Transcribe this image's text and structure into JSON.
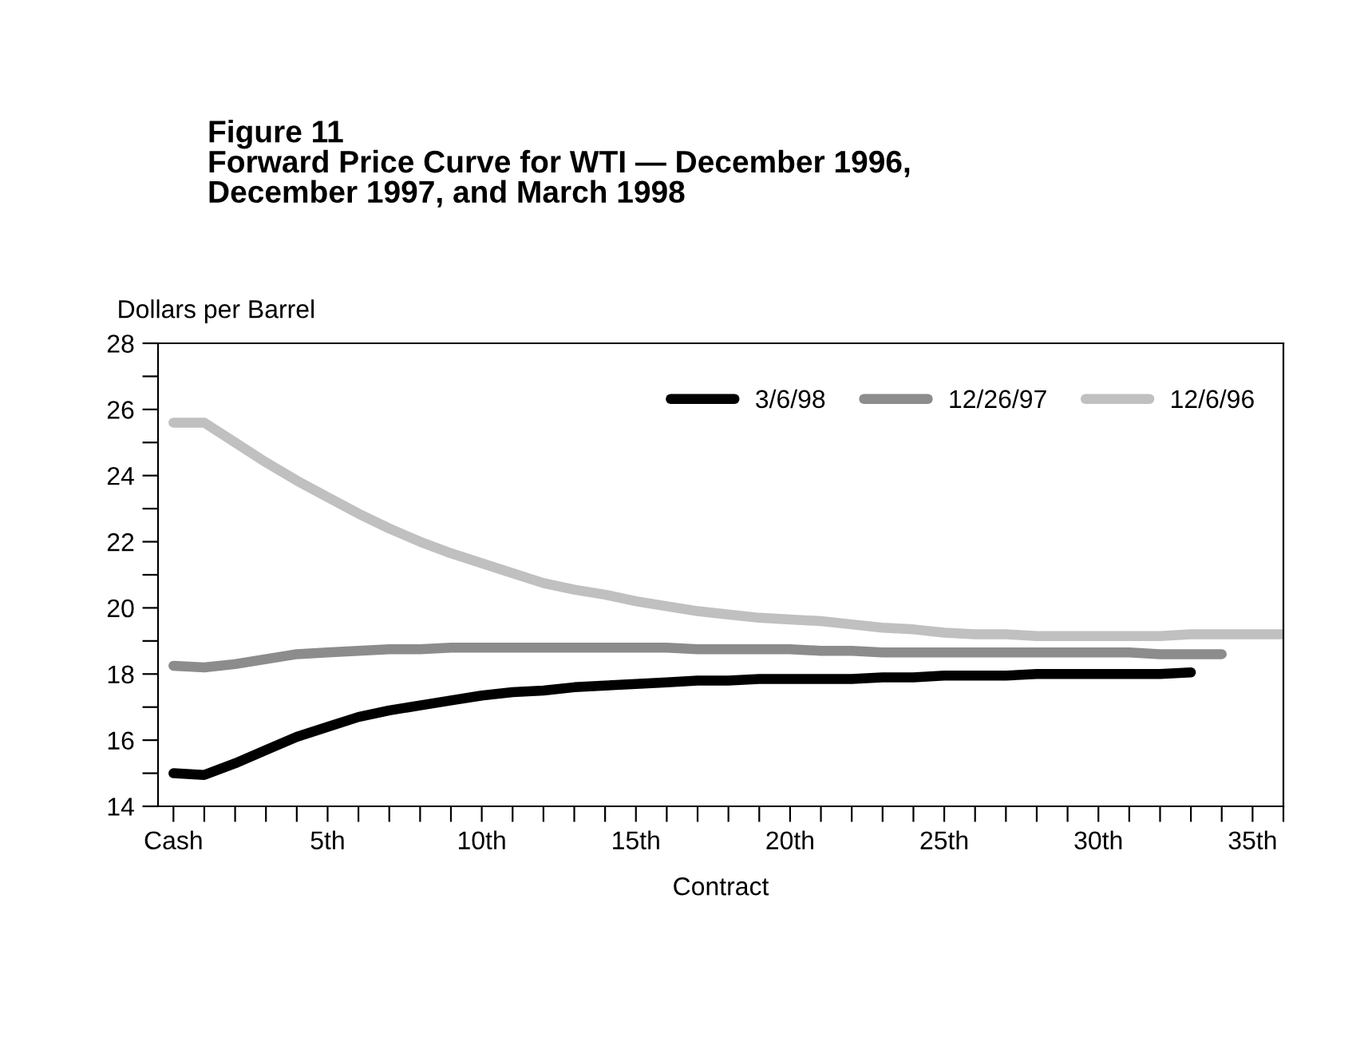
{
  "chart_data": {
    "type": "line",
    "title": "Figure 11\nForward Price Curve for WTI — December 1996,\nDecember 1997, and March 1998",
    "xlabel": "Contract",
    "ylabel": "Dollars per Barrel",
    "xlim": [
      -0.5,
      36
    ],
    "xticks": [
      {
        "value": 0,
        "label": "Cash"
      },
      {
        "value": 1,
        "label": null
      },
      {
        "value": 2,
        "label": null
      },
      {
        "value": 3,
        "label": null
      },
      {
        "value": 4,
        "label": null
      },
      {
        "value": 5,
        "label": "5th"
      },
      {
        "value": 6,
        "label": null
      },
      {
        "value": 7,
        "label": null
      },
      {
        "value": 8,
        "label": null
      },
      {
        "value": 9,
        "label": null
      },
      {
        "value": 10,
        "label": "10th"
      },
      {
        "value": 11,
        "label": null
      },
      {
        "value": 12,
        "label": null
      },
      {
        "value": 13,
        "label": null
      },
      {
        "value": 14,
        "label": null
      },
      {
        "value": 15,
        "label": "15th"
      },
      {
        "value": 16,
        "label": null
      },
      {
        "value": 17,
        "label": null
      },
      {
        "value": 18,
        "label": null
      },
      {
        "value": 19,
        "label": null
      },
      {
        "value": 20,
        "label": "20th"
      },
      {
        "value": 21,
        "label": null
      },
      {
        "value": 22,
        "label": null
      },
      {
        "value": 23,
        "label": null
      },
      {
        "value": 24,
        "label": null
      },
      {
        "value": 25,
        "label": "25th"
      },
      {
        "value": 26,
        "label": null
      },
      {
        "value": 27,
        "label": null
      },
      {
        "value": 28,
        "label": null
      },
      {
        "value": 29,
        "label": null
      },
      {
        "value": 30,
        "label": "30th"
      },
      {
        "value": 31,
        "label": null
      },
      {
        "value": 32,
        "label": null
      },
      {
        "value": 33,
        "label": null
      },
      {
        "value": 34,
        "label": null
      },
      {
        "value": 35,
        "label": "35th"
      },
      {
        "value": 36,
        "label": null
      }
    ],
    "ylim": [
      14,
      28
    ],
    "yticks": [
      14,
      {
        "value": 15,
        "label": null
      },
      16,
      {
        "value": 17,
        "label": null
      },
      18,
      {
        "value": 19,
        "label": null
      },
      20,
      {
        "value": 21,
        "label": null
      },
      22,
      {
        "value": 23,
        "label": null
      },
      24,
      {
        "value": 25,
        "label": null
      },
      26,
      {
        "value": 27,
        "label": null
      },
      28
    ],
    "grid": false,
    "legend": "top right",
    "marker": "none",
    "line_style": "solid",
    "series": [
      {
        "name": "3/6/98",
        "color": "#000000",
        "x": [
          0,
          1,
          2,
          3,
          4,
          5,
          6,
          7,
          8,
          9,
          10,
          11,
          12,
          13,
          14,
          15,
          16,
          17,
          18,
          19,
          20,
          21,
          22,
          23,
          24,
          25,
          26,
          27,
          28,
          29,
          30,
          31,
          32,
          33
        ],
        "values": [
          15.0,
          14.95,
          15.3,
          15.7,
          16.1,
          16.4,
          16.7,
          16.9,
          17.05,
          17.2,
          17.35,
          17.45,
          17.5,
          17.6,
          17.65,
          17.7,
          17.75,
          17.8,
          17.8,
          17.85,
          17.85,
          17.85,
          17.85,
          17.9,
          17.9,
          17.95,
          17.95,
          17.95,
          18.0,
          18.0,
          18.0,
          18.0,
          18.0,
          18.05
        ]
      },
      {
        "name": "12/26/97",
        "color": "#8c8c8c",
        "x": [
          0,
          1,
          2,
          3,
          4,
          5,
          6,
          7,
          8,
          9,
          10,
          11,
          12,
          13,
          14,
          15,
          16,
          17,
          18,
          19,
          20,
          21,
          22,
          23,
          24,
          25,
          26,
          27,
          28,
          29,
          30,
          31,
          32,
          33,
          34
        ],
        "values": [
          18.25,
          18.2,
          18.3,
          18.45,
          18.6,
          18.65,
          18.7,
          18.75,
          18.75,
          18.8,
          18.8,
          18.8,
          18.8,
          18.8,
          18.8,
          18.8,
          18.8,
          18.75,
          18.75,
          18.75,
          18.75,
          18.7,
          18.7,
          18.65,
          18.65,
          18.65,
          18.65,
          18.65,
          18.65,
          18.65,
          18.65,
          18.65,
          18.6,
          18.6,
          18.6
        ]
      },
      {
        "name": "12/6/96",
        "color": "#c0c0c0",
        "x": [
          0,
          1,
          2,
          3,
          4,
          5,
          6,
          7,
          8,
          9,
          10,
          11,
          12,
          13,
          14,
          15,
          16,
          17,
          18,
          19,
          20,
          21,
          22,
          23,
          24,
          25,
          26,
          27,
          28,
          29,
          30,
          31,
          32,
          33,
          34,
          35,
          36
        ],
        "values": [
          25.6,
          25.6,
          25.0,
          24.4,
          23.85,
          23.35,
          22.85,
          22.4,
          22.0,
          21.65,
          21.35,
          21.05,
          20.75,
          20.55,
          20.4,
          20.2,
          20.05,
          19.9,
          19.8,
          19.7,
          19.65,
          19.6,
          19.5,
          19.4,
          19.35,
          19.25,
          19.2,
          19.2,
          19.15,
          19.15,
          19.15,
          19.15,
          19.15,
          19.2,
          19.2,
          19.2,
          19.2
        ]
      }
    ]
  }
}
